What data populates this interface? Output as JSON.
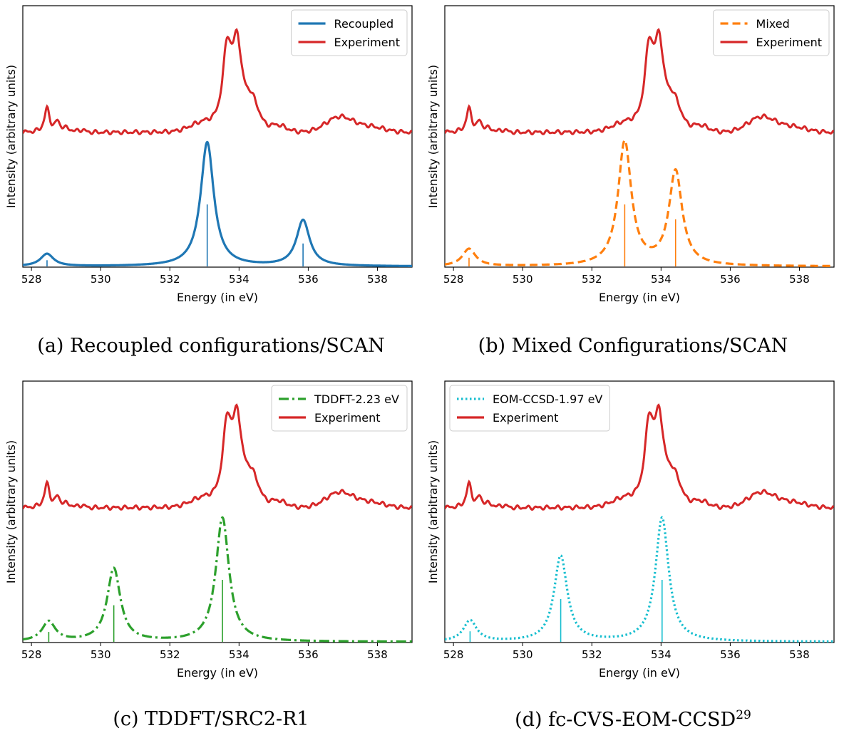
{
  "chart_data": [
    {
      "type": "line",
      "caption": "(a) Recoupled configurations/SCAN",
      "xlabel": "Energy (in eV)",
      "ylabel": "Intensity (arbitrary units)",
      "xlim": [
        527.75,
        539.0
      ],
      "xticks": [
        528,
        530,
        532,
        534,
        536,
        538
      ],
      "legend_position": "top-right",
      "series": [
        {
          "name": "Recoupled",
          "color": "#1f77b4",
          "dash": "solid",
          "peaks": [
            {
              "x": 528.45,
              "height": 0.1
            },
            {
              "x": 533.08,
              "height": 1.0
            },
            {
              "x": 535.85,
              "height": 0.37
            }
          ],
          "widths": [
            0.23,
            0.23,
            0.23
          ]
        },
        {
          "name": "Experiment",
          "color": "#d62728",
          "dash": "solid"
        }
      ]
    },
    {
      "type": "line",
      "caption": "(b) Mixed Configurations/SCAN",
      "xlabel": "Energy (in eV)",
      "ylabel": "Intensity (arbitrary units)",
      "xlim": [
        527.75,
        539.0
      ],
      "xticks": [
        528,
        530,
        532,
        534,
        536,
        538
      ],
      "legend_position": "top-right",
      "series": [
        {
          "name": "Mixed",
          "color": "#ff7f0e",
          "dash": "dashed",
          "peaks": [
            {
              "x": 528.45,
              "height": 0.14
            },
            {
              "x": 532.95,
              "height": 1.0
            },
            {
              "x": 534.42,
              "height": 0.76
            }
          ],
          "widths": [
            0.23,
            0.23,
            0.23
          ]
        },
        {
          "name": "Experiment",
          "color": "#d62728",
          "dash": "solid"
        }
      ]
    },
    {
      "type": "line",
      "caption": "(c) TDDFT/SRC2-R1",
      "xlabel": "Energy (in eV)",
      "ylabel": "Intensity (arbitrary units)",
      "xlim": [
        527.75,
        539.0
      ],
      "xticks": [
        528,
        530,
        532,
        534,
        536,
        538
      ],
      "legend_position": "top-right",
      "series": [
        {
          "name": "TDDFT-2.23 eV",
          "color": "#2ca02c",
          "dash": "dashdot",
          "peaks": [
            {
              "x": 528.5,
              "height": 0.16
            },
            {
              "x": 530.38,
              "height": 0.59
            },
            {
              "x": 533.52,
              "height": 1.0
            }
          ],
          "widths": [
            0.23,
            0.23,
            0.23
          ]
        },
        {
          "name": "Experiment",
          "color": "#d62728",
          "dash": "solid"
        }
      ]
    },
    {
      "type": "line",
      "caption": "(d) fc-CVS-EOM-CCSD",
      "caption_sup": "29",
      "xlabel": "Energy (in eV)",
      "ylabel": "Intensity (arbitrary units)",
      "xlim": [
        527.75,
        539.0
      ],
      "xticks": [
        528,
        530,
        532,
        534,
        536,
        538
      ],
      "legend_position": "top-left",
      "series": [
        {
          "name": "EOM-CCSD-1.97 eV",
          "color": "#17becf",
          "dash": "dotted",
          "peaks": [
            {
              "x": 528.48,
              "height": 0.17
            },
            {
              "x": 531.1,
              "height": 0.69
            },
            {
              "x": 534.03,
              "height": 1.0
            }
          ],
          "widths": [
            0.23,
            0.23,
            0.23
          ]
        },
        {
          "name": "Experiment",
          "color": "#d62728",
          "dash": "solid"
        }
      ]
    }
  ]
}
